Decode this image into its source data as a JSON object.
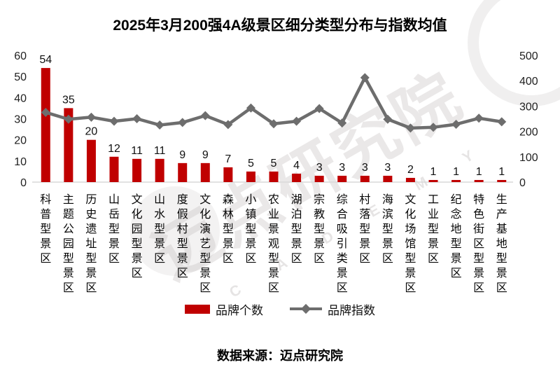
{
  "title": "2025年3月200强4A级景区细分类型分布与指数均值",
  "footer": "数据来源：迈点研究院",
  "watermark": {
    "main": "迈点研究院",
    "sub": "C A D E M Y"
  },
  "colors": {
    "bar": "#C00000",
    "line": "#6D6D6D",
    "baseline": "#D9D9D9"
  },
  "legend": {
    "bar_label": "品牌个数",
    "line_label": "品牌指数"
  },
  "chart_data": {
    "type": "bar",
    "subtype": "combo-bar-line",
    "title": "2025年3月200强4A级景区细分类型分布与指数均值",
    "categories": [
      "科普型景区",
      "主题公园型景区",
      "历史遗址型景区",
      "山岳型景区",
      "文化园型景区",
      "山水型景区",
      "度假村型景区",
      "文化演艺型景区",
      "森林型景区",
      "小镇型景区",
      "农业景观型景区",
      "湖泊型景区",
      "宗教型景区",
      "综合吸引类景区",
      "村落型景区",
      "海滨型景区",
      "文化场馆型景区",
      "工业型景区",
      "纪念地型景区",
      "特色街区型景区",
      "生产基地型景区"
    ],
    "series": [
      {
        "name": "品牌个数",
        "type": "bar",
        "axis": "left",
        "color": "#C00000",
        "values": [
          54,
          35,
          20,
          12,
          11,
          11,
          9,
          9,
          7,
          5,
          5,
          4,
          3,
          3,
          3,
          3,
          2,
          1,
          1,
          1,
          1
        ],
        "data_labels": true
      },
      {
        "name": "品牌指数",
        "type": "line",
        "axis": "right",
        "color": "#6D6D6D",
        "values": [
          275,
          248,
          256,
          240,
          250,
          225,
          235,
          262,
          227,
          292,
          230,
          240,
          290,
          233,
          412,
          248,
          213,
          216,
          228,
          252,
          238
        ],
        "marker": "diamond",
        "data_labels": false
      }
    ],
    "left_axis": {
      "min": 0,
      "max": 60,
      "ticks": [
        0,
        10,
        20,
        30,
        40,
        50,
        60
      ]
    },
    "right_axis": {
      "min": 0,
      "max": 500,
      "ticks": [
        0,
        100,
        200,
        300,
        400,
        500
      ]
    },
    "grid": false,
    "legend_position": "bottom",
    "xlabel": "",
    "ylabel": ""
  }
}
